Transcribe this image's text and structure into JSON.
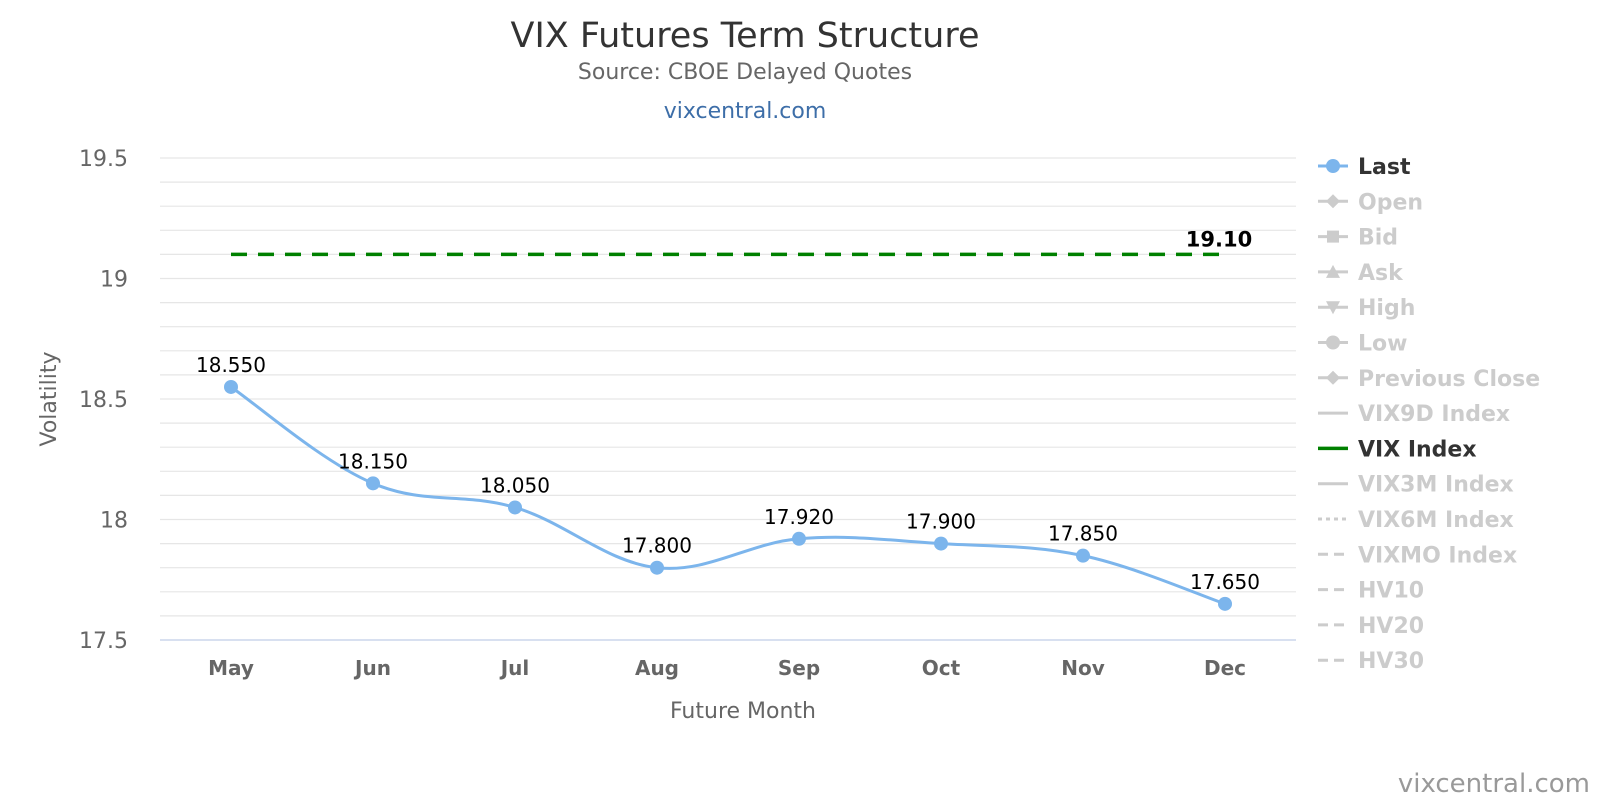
{
  "header": {
    "title": "VIX Futures Term Structure",
    "subtitle": "Source: CBOE Delayed Quotes",
    "link": "vixcentral.com"
  },
  "watermark": "vixcentral.com",
  "colors": {
    "last": "#7cb5ec",
    "vix": "#008000",
    "grid": "#e6e6e6",
    "legend_inactive": "#cccccc",
    "legend_active": "#333333"
  },
  "chart_data": {
    "type": "line",
    "xlabel": "Future Month",
    "ylabel": "Volatility",
    "ylim": [
      17.5,
      19.5
    ],
    "yticks": [
      "19.5",
      "19",
      "18.5",
      "18",
      "17.5"
    ],
    "ytick_values": [
      19.5,
      19,
      18.5,
      18,
      17.5
    ],
    "minor_step": 0.1,
    "categories": [
      "May",
      "Jun",
      "Jul",
      "Aug",
      "Sep",
      "Oct",
      "Nov",
      "Dec"
    ],
    "series": [
      {
        "name": "Last",
        "values": [
          18.55,
          18.15,
          18.05,
          17.8,
          17.92,
          17.9,
          17.85,
          17.65
        ],
        "labels": [
          "18.550",
          "18.150",
          "18.050",
          "17.800",
          "17.920",
          "17.900",
          "17.850",
          "17.650"
        ],
        "style": "smooth-line-markers"
      },
      {
        "name": "VIX Index",
        "value": 19.1,
        "label": "19.10",
        "style": "dashed"
      }
    ],
    "grid": true,
    "legend_position": "right"
  },
  "legend": [
    {
      "name": "Last",
      "symbol": "circle",
      "active": true
    },
    {
      "name": "Open",
      "symbol": "diamond",
      "active": false
    },
    {
      "name": "Bid",
      "symbol": "square",
      "active": false
    },
    {
      "name": "Ask",
      "symbol": "triangle",
      "active": false
    },
    {
      "name": "High",
      "symbol": "triangle-down",
      "active": false
    },
    {
      "name": "Low",
      "symbol": "circle",
      "active": false
    },
    {
      "name": "Previous Close",
      "symbol": "diamond",
      "active": false
    },
    {
      "name": "VIX9D Index",
      "symbol": "line",
      "active": false
    },
    {
      "name": "VIX Index",
      "symbol": "line",
      "active": true
    },
    {
      "name": "VIX3M Index",
      "symbol": "line",
      "active": false
    },
    {
      "name": "VIX6M Index",
      "symbol": "dotted",
      "active": false
    },
    {
      "name": "VIXMO Index",
      "symbol": "dashdot",
      "active": false
    },
    {
      "name": "HV10",
      "symbol": "dashdot",
      "active": false
    },
    {
      "name": "HV20",
      "symbol": "dashdot",
      "active": false
    },
    {
      "name": "HV30",
      "symbol": "dashdot",
      "active": false
    }
  ]
}
